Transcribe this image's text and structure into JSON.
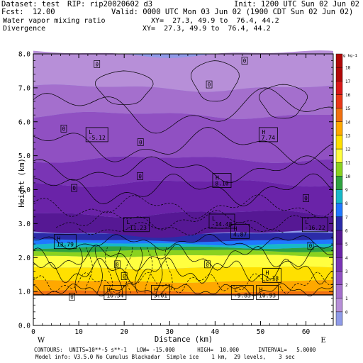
{
  "header": {
    "dataset": "Dataset: test",
    "rip": "RIP: rip20020602 d3",
    "init": "Init: 1200 UTC Sun 02 Jun 02",
    "fcst_label": "Fcst:",
    "fcst_value": "12.00",
    "valid": "Valid: 0000 UTC Mon 03 Jun 02 (1900 CDT Sun 02 Jun 02)",
    "field1": "Water vapor mixing ratio",
    "field1_xy": "XY=  27.3, 49.9 to  76.4, 44.2",
    "field2": "Divergence",
    "field2_xy": "XY=  27.3, 49.9 to  76.4, 44.2"
  },
  "footer": {
    "line1": "CONTOURS:  UNITS=10**-5 s**-1   LOW= -15.000       HIGH=  10.000      INTERVAL=   5.0000",
    "line2": "Model info: V3.5.0 No Cumulus Blackadar  Simple ice    1 km,  29 levels,    3 sec"
  },
  "chart_data": {
    "type": "heatmap",
    "xlabel": "Distance (km)",
    "ylabel": "Height (km)",
    "xlim": [
      0,
      66
    ],
    "ylim": [
      0,
      8
    ],
    "x_ticks": [
      0,
      10,
      20,
      30,
      40,
      50,
      60
    ],
    "y_ticks": [
      "0.0",
      "1.0",
      "2.0",
      "3.0",
      "4.0",
      "5.0",
      "6.0",
      "7.0",
      "8.0"
    ],
    "left_end_label": "W",
    "right_end_label": "E",
    "colorbar": {
      "unit": "g kg-1",
      "levels": [
        0,
        1,
        2,
        3,
        4,
        5,
        6,
        7,
        8,
        9,
        10,
        11,
        12,
        13,
        14,
        15,
        16,
        17,
        18
      ],
      "colors": [
        "#8f9ae8",
        "#b78fd8",
        "#a46fcd",
        "#9050c2",
        "#7a35b5",
        "#6a23a8",
        "#561894",
        "#2b2ba8",
        "#1f78ff",
        "#17b8c8",
        "#2fa340",
        "#8ad21f",
        "#ffff40",
        "#ffe000",
        "#ffa800",
        "#f07010",
        "#e83818",
        "#d81818",
        "#b00808"
      ],
      "bottom_color": "#8f9ae8",
      "top_color": "#b00808"
    },
    "terrain_height_km": 0.9,
    "mixing_ratio_bands": [
      {
        "z0": 0.9,
        "z1": 1.0,
        "value": 15
      },
      {
        "z0": 1.0,
        "z1": 1.3,
        "value": 14
      },
      {
        "z0": 1.3,
        "z1": 1.7,
        "value": 13
      },
      {
        "z0": 1.7,
        "z1": 2.05,
        "value": 12
      },
      {
        "z0": 2.05,
        "z1": 2.2,
        "value": 11
      },
      {
        "z0": 2.2,
        "z1": 2.3,
        "value": 10
      },
      {
        "z0": 2.3,
        "z1": 2.4,
        "value": 9
      },
      {
        "z0": 2.4,
        "z1": 2.5,
        "value": 8
      },
      {
        "z0": 2.5,
        "z1": 2.7,
        "value": 7
      },
      {
        "z0": 2.7,
        "z1": 3.3,
        "value": 6
      },
      {
        "z0": 3.3,
        "z1": 4.2,
        "value": 5
      },
      {
        "z0": 4.2,
        "z1": 4.9,
        "value": 4
      },
      {
        "z0": 4.9,
        "z1": 6.2,
        "value": 3
      },
      {
        "z0": 6.2,
        "z1": 7.0,
        "value": 2
      },
      {
        "z0": 7.0,
        "z1": 8.0,
        "value": 1
      }
    ],
    "extrema_labels": [
      {
        "letter": "L",
        "value": "-5.12",
        "x": 14.0,
        "y": 5.6
      },
      {
        "letter": "H",
        "value": "7.74",
        "x": 51.7,
        "y": 5.6
      },
      {
        "letter": "H",
        "value": "8.10",
        "x": 41.5,
        "y": 4.25
      },
      {
        "letter": "L",
        "value": "-14.48",
        "x": 41.5,
        "y": 3.05
      },
      {
        "letter": "L",
        "value": "-11.23",
        "x": 22.7,
        "y": 2.95
      },
      {
        "letter": "H",
        "value": "4.87",
        "x": 45.5,
        "y": 2.75
      },
      {
        "letter": "L",
        "value": "-16.22",
        "x": 62.0,
        "y": 2.95
      },
      {
        "letter": "H",
        "value": "13.79",
        "x": 7.0,
        "y": 2.45
      },
      {
        "letter": "H",
        "value": "7.18",
        "x": 52.5,
        "y": 1.45
      },
      {
        "letter": "H",
        "value": "16.34",
        "x": 18.0,
        "y": 0.95
      },
      {
        "letter": "H",
        "value": "3.01",
        "x": 28.0,
        "y": 0.95
      },
      {
        "letter": "L",
        "value": "-9.83",
        "x": 46.0,
        "y": 0.95
      },
      {
        "letter": "H",
        "value": "10.93",
        "x": 51.5,
        "y": 0.95
      }
    ],
    "contour_zero_labels": [
      {
        "text": "0",
        "x": 14.0,
        "y": 7.7
      },
      {
        "text": "0",
        "x": 46.5,
        "y": 7.8
      },
      {
        "text": "0",
        "x": 38.7,
        "y": 7.1
      },
      {
        "text": "0",
        "x": 6.7,
        "y": 5.8
      },
      {
        "text": "0",
        "x": 23.6,
        "y": 5.4
      },
      {
        "text": "0",
        "x": 23.5,
        "y": 4.4
      },
      {
        "text": "0",
        "x": 9.0,
        "y": 4.05
      },
      {
        "text": "0",
        "x": 60.0,
        "y": 3.75
      },
      {
        "text": "0",
        "x": 61.0,
        "y": 2.35
      },
      {
        "text": "0",
        "x": 18.5,
        "y": 1.8
      },
      {
        "text": "0",
        "x": 20.0,
        "y": 1.45
      },
      {
        "text": "0",
        "x": 38.3,
        "y": 1.8
      },
      {
        "text": "0",
        "x": 8.5,
        "y": 0.85
      }
    ]
  }
}
